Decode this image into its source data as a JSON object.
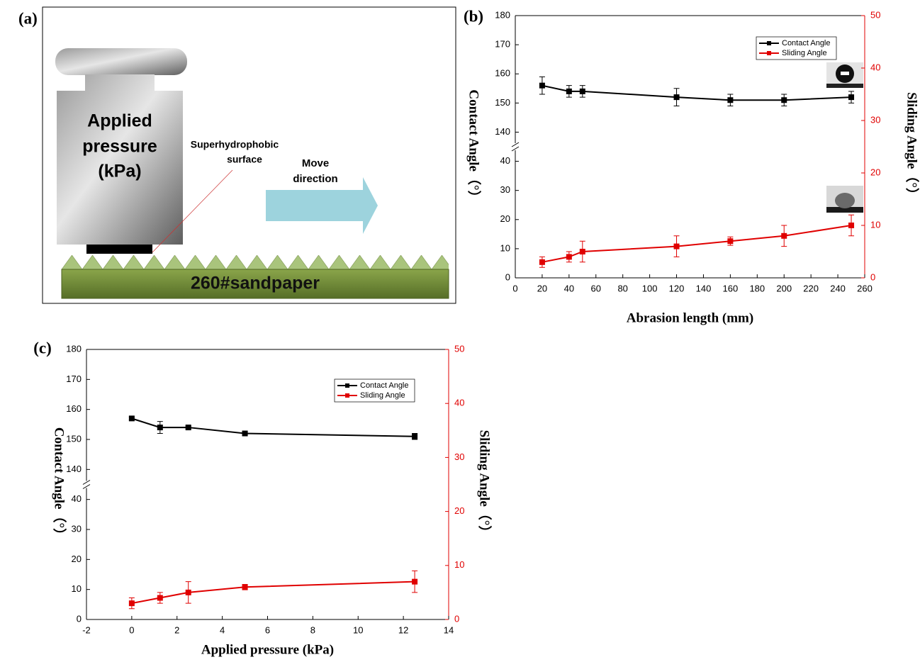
{
  "diagram": {
    "panel_label": "(a)",
    "weight_label": [
      "Applied",
      "pressure",
      "(kPa)"
    ],
    "surface_label": [
      "Superhydrophobic",
      "surface"
    ],
    "arrow_label": [
      "Move",
      "direction"
    ],
    "sandpaper_label": "260#sandpaper"
  },
  "chart_data": [
    {
      "type": "line",
      "panel_label": "(b)",
      "x_label": "Abrasion length (mm)",
      "y_label": "Contact Angle（°）",
      "y2_label": "Sliding Angle（°）",
      "x": [
        20,
        40,
        50,
        120,
        160,
        200,
        250
      ],
      "series": [
        {
          "name": "Contact Angle",
          "color": "#000000",
          "values": [
            156,
            154,
            154,
            152,
            151,
            151,
            152
          ],
          "errors": [
            3,
            2,
            2,
            3,
            2,
            2,
            2
          ]
        },
        {
          "name": "Sliding Angle",
          "color": "#e00000",
          "axis": "y2",
          "values": [
            3,
            4,
            5,
            6,
            7,
            8,
            10
          ],
          "errors": [
            1,
            1,
            2,
            2,
            0.8,
            2,
            2
          ]
        }
      ],
      "xlim": [
        0,
        260
      ],
      "xticks": [
        0,
        20,
        40,
        60,
        80,
        100,
        120,
        140,
        160,
        180,
        200,
        220,
        240,
        260
      ],
      "ylim": [
        0,
        180
      ],
      "ybreak": [
        45,
        135
      ],
      "yticks": [
        0,
        10,
        20,
        30,
        40,
        140,
        150,
        160,
        170,
        180
      ],
      "y2lim": [
        0,
        50
      ],
      "y2ticks": [
        0,
        10,
        20,
        30,
        40,
        50
      ],
      "y2_color": "#e00000",
      "legend": "upper right"
    },
    {
      "type": "line",
      "panel_label": "(c)",
      "x_label": "Applied pressure (kPa)",
      "y_label": "Contact Angle（°）",
      "y2_label": "Sliding Angle（°）",
      "x": [
        0,
        1.25,
        2.5,
        5,
        12.5
      ],
      "series": [
        {
          "name": "Contact Angle",
          "color": "#000000",
          "values": [
            157,
            154,
            154,
            152,
            151
          ],
          "errors": [
            0.5,
            2,
            0.5,
            0.5,
            1
          ]
        },
        {
          "name": "Sliding Angle",
          "color": "#e00000",
          "axis": "y2",
          "values": [
            3,
            4,
            5,
            6,
            7
          ],
          "errors": [
            1,
            1,
            2,
            0.5,
            2
          ]
        }
      ],
      "xlim": [
        -2,
        14
      ],
      "xticks": [
        -2,
        0,
        2,
        4,
        6,
        8,
        10,
        12,
        14
      ],
      "ylim": [
        0,
        180
      ],
      "ybreak": [
        45,
        135
      ],
      "yticks": [
        0,
        10,
        20,
        30,
        40,
        140,
        150,
        160,
        170,
        180
      ],
      "y2lim": [
        0,
        50
      ],
      "y2ticks": [
        0,
        10,
        20,
        30,
        40,
        50
      ],
      "y2_color": "#e00000",
      "legend": "upper right"
    }
  ]
}
